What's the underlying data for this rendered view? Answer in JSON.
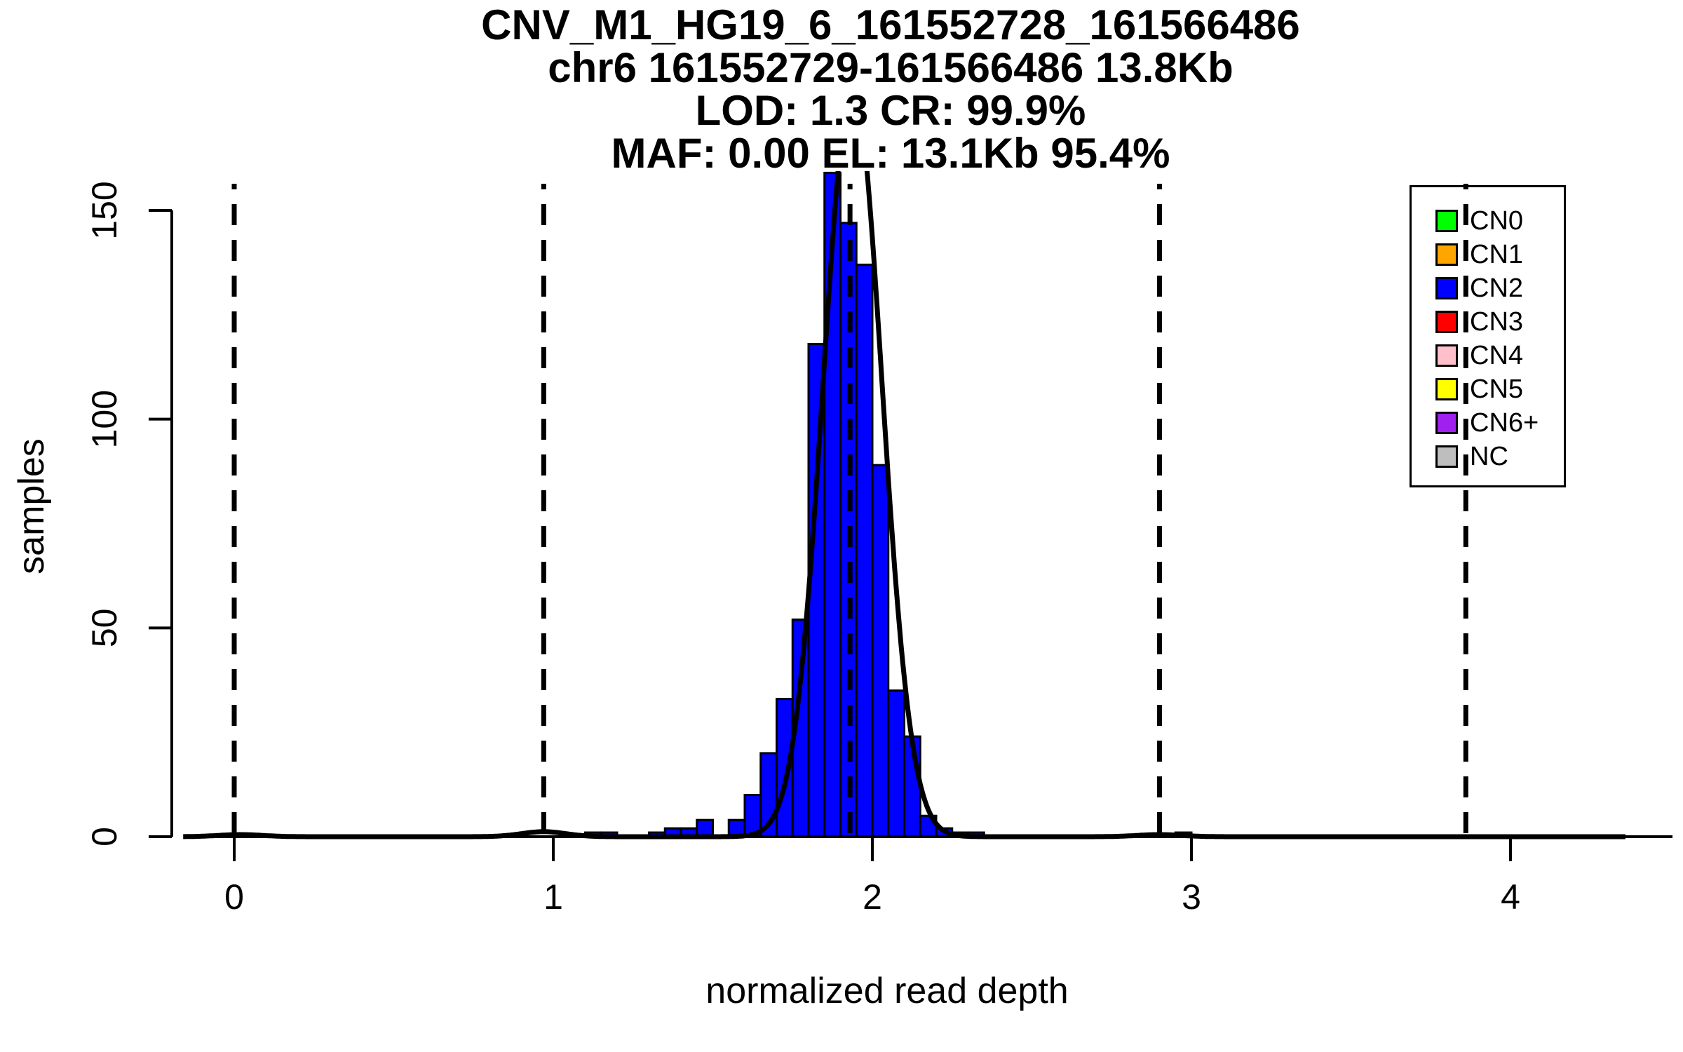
{
  "figure": {
    "title_lines": [
      "CNV_M1_HG19_6_161552728_161566486",
      "chr6 161552729-161566486 13.8Kb",
      "LOD: 1.3 CR: 99.9%",
      "MAF: 0.00 EL: 13.1Kb 95.4%"
    ]
  },
  "chart_data": {
    "type": "bar",
    "title": "CNV_M1_HG19_6_161552728_161566486 / chr6 161552729-161566486 13.8Kb / LOD: 1.3 CR: 99.9% / MAF: 0.00 EL: 13.1Kb 95.4%",
    "xlabel": "normalized read depth",
    "ylabel": "samples",
    "x_ticks": [
      0,
      1,
      2,
      3,
      4
    ],
    "y_ticks": [
      0,
      50,
      100,
      150
    ],
    "xlim": [
      -0.15,
      4.35
    ],
    "ylim": [
      0,
      159.5
    ],
    "grid": false,
    "bin_width": 0.05,
    "bar_fill": "#0000FF",
    "bar_border": "#000000",
    "bins": [
      {
        "start": 1.1,
        "count": 1
      },
      {
        "start": 1.15,
        "count": 1
      },
      {
        "start": 1.3,
        "count": 1
      },
      {
        "start": 1.35,
        "count": 2
      },
      {
        "start": 1.4,
        "count": 2
      },
      {
        "start": 1.45,
        "count": 4
      },
      {
        "start": 1.55,
        "count": 4
      },
      {
        "start": 1.6,
        "count": 10
      },
      {
        "start": 1.65,
        "count": 20
      },
      {
        "start": 1.7,
        "count": 33
      },
      {
        "start": 1.75,
        "count": 52
      },
      {
        "start": 1.8,
        "count": 118
      },
      {
        "start": 1.85,
        "count": 159
      },
      {
        "start": 1.9,
        "count": 147
      },
      {
        "start": 1.95,
        "count": 137
      },
      {
        "start": 2.0,
        "count": 89
      },
      {
        "start": 2.05,
        "count": 35
      },
      {
        "start": 2.1,
        "count": 24
      },
      {
        "start": 2.15,
        "count": 5
      },
      {
        "start": 2.2,
        "count": 2
      },
      {
        "start": 2.25,
        "count": 1
      },
      {
        "start": 2.3,
        "count": 1
      },
      {
        "start": 2.95,
        "count": 1
      }
    ],
    "dashed_lines_x": [
      0,
      0.97,
      1.93,
      2.9,
      3.86
    ],
    "fit_curve": {
      "color": "#000000",
      "components": [
        {
          "mu": 0.02,
          "amp": 0.5,
          "sigma": 0.07
        },
        {
          "mu": 0.97,
          "amp": 1.2,
          "sigma": 0.07
        },
        {
          "mu": 1.938,
          "amp": 180,
          "sigma": 0.092
        },
        {
          "mu": 2.9,
          "amp": 0.5,
          "sigma": 0.07
        }
      ]
    },
    "legend_position": "top-right",
    "legend": [
      {
        "label": "CN0",
        "color": "#00FF00"
      },
      {
        "label": "CN1",
        "color": "#FFA500"
      },
      {
        "label": "CN2",
        "color": "#0000FF"
      },
      {
        "label": "CN3",
        "color": "#FF0000"
      },
      {
        "label": "CN4",
        "color": "#FFC0CB"
      },
      {
        "label": "CN5",
        "color": "#FFFF00"
      },
      {
        "label": "CN6+",
        "color": "#A020F0"
      },
      {
        "label": "NC",
        "color": "#BEBEBE"
      }
    ]
  }
}
